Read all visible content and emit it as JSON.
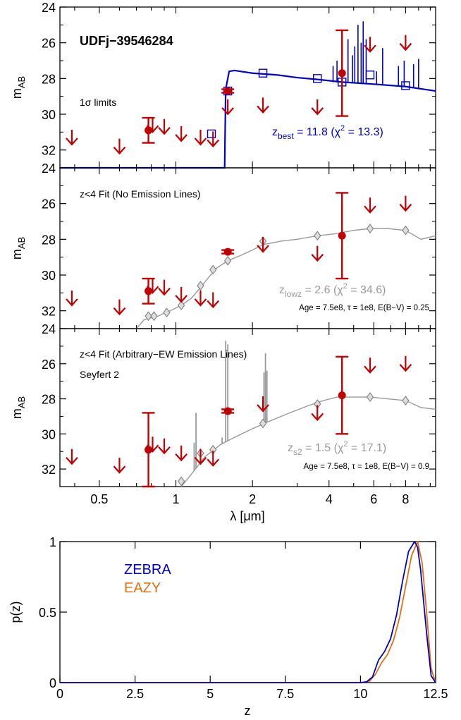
{
  "figure": {
    "y_label_main": "m",
    "y_label_sub": "AB",
    "x_label_sed": "λ [μm]",
    "x_label_pz": "z",
    "y_label_pz": "p(z)"
  },
  "colors": {
    "limit": "#c00000",
    "detection": "#c00000",
    "best_fit": "#0000c8",
    "lowz_model": "#999999",
    "zebra": "#0000c8",
    "eazy": "#e07010"
  },
  "chart_data": [
    {
      "type": "scatter",
      "panel": "top",
      "x_scale": "log",
      "xlim": [
        0.35,
        10.5
      ],
      "ylim": [
        33,
        24
      ],
      "y_ticks": [
        24,
        26,
        28,
        30,
        32
      ],
      "texts": {
        "object": "UDFj−39546284",
        "limits_note": "1σ limits",
        "fit_prefix": "z",
        "fit_sub": "best",
        "fit_rest": " = 11.8 (χ",
        "fit_sup": "2",
        "fit_end": " = 13.3)"
      },
      "upper_limits": [
        {
          "x": 0.39,
          "y": 31.3
        },
        {
          "x": 0.6,
          "y": 31.8
        },
        {
          "x": 0.81,
          "y": 30.6
        },
        {
          "x": 0.9,
          "y": 30.7
        },
        {
          "x": 1.05,
          "y": 31.1
        },
        {
          "x": 1.25,
          "y": 31.3
        },
        {
          "x": 1.4,
          "y": 31.4
        },
        {
          "x": 1.6,
          "y": 29.6
        },
        {
          "x": 2.2,
          "y": 29.5
        },
        {
          "x": 3.6,
          "y": 29.6
        },
        {
          "x": 5.8,
          "y": 26.1
        },
        {
          "x": 8.0,
          "y": 26.0
        }
      ],
      "detections": [
        {
          "x": 0.78,
          "y": 30.9,
          "err": 0.7
        },
        {
          "x": 1.6,
          "y": 28.7,
          "err": 0.1
        },
        {
          "x": 4.5,
          "y": 27.7,
          "err": 2.4
        }
      ],
      "model_points": [
        {
          "x": 1.38,
          "y": 31.1
        },
        {
          "x": 1.6,
          "y": 28.7
        },
        {
          "x": 2.2,
          "y": 27.7
        },
        {
          "x": 3.6,
          "y": 28.0
        },
        {
          "x": 4.5,
          "y": 28.2
        },
        {
          "x": 5.8,
          "y": 27.8
        },
        {
          "x": 8.0,
          "y": 28.4
        }
      ]
    },
    {
      "type": "scatter",
      "panel": "middle",
      "x_scale": "log",
      "xlim": [
        0.35,
        10.5
      ],
      "ylim": [
        33,
        24
      ],
      "y_ticks": [
        24,
        26,
        28,
        30,
        32
      ],
      "texts": {
        "title": "z<4 Fit (No Emission Lines)",
        "fit_prefix": "z",
        "fit_sub": "lowz",
        "fit_rest": " = 2.6 (χ",
        "fit_sup": "2",
        "fit_end": " = 34.6)",
        "params": "Age = 7.5e8, τ = 1e8, E(B−V) = 0.25"
      },
      "upper_limits": [
        {
          "x": 0.39,
          "y": 31.3
        },
        {
          "x": 0.6,
          "y": 31.8
        },
        {
          "x": 0.81,
          "y": 30.6
        },
        {
          "x": 0.9,
          "y": 30.7
        },
        {
          "x": 1.05,
          "y": 31.1
        },
        {
          "x": 1.25,
          "y": 31.3
        },
        {
          "x": 1.4,
          "y": 31.4
        },
        {
          "x": 2.2,
          "y": 28.3
        },
        {
          "x": 3.6,
          "y": 28.8
        },
        {
          "x": 5.8,
          "y": 26.1
        },
        {
          "x": 8.0,
          "y": 26.0
        }
      ],
      "detections": [
        {
          "x": 0.78,
          "y": 30.9,
          "err": 0.7
        },
        {
          "x": 1.6,
          "y": 28.7,
          "err": 0.1
        },
        {
          "x": 4.5,
          "y": 27.8,
          "err": 2.4
        }
      ],
      "model_points": [
        {
          "x": 0.78,
          "y": 32.3
        },
        {
          "x": 0.82,
          "y": 32.3
        },
        {
          "x": 0.92,
          "y": 32.1
        },
        {
          "x": 1.05,
          "y": 31.7
        },
        {
          "x": 1.25,
          "y": 30.6
        },
        {
          "x": 1.4,
          "y": 29.7
        },
        {
          "x": 1.6,
          "y": 29.2
        },
        {
          "x": 2.2,
          "y": 28.1
        },
        {
          "x": 3.6,
          "y": 27.8
        },
        {
          "x": 5.8,
          "y": 27.4
        },
        {
          "x": 8.0,
          "y": 27.5
        }
      ],
      "model_curve": [
        {
          "x": 0.7,
          "y": 33.0
        },
        {
          "x": 0.75,
          "y": 32.5
        },
        {
          "x": 0.85,
          "y": 32.3
        },
        {
          "x": 0.95,
          "y": 32.0
        },
        {
          "x": 1.05,
          "y": 31.7
        },
        {
          "x": 1.15,
          "y": 31.3
        },
        {
          "x": 1.25,
          "y": 30.7
        },
        {
          "x": 1.35,
          "y": 30.1
        },
        {
          "x": 1.45,
          "y": 29.6
        },
        {
          "x": 1.6,
          "y": 29.2
        },
        {
          "x": 1.8,
          "y": 28.9
        },
        {
          "x": 2.0,
          "y": 28.6
        },
        {
          "x": 2.2,
          "y": 28.3
        },
        {
          "x": 2.6,
          "y": 28.1
        },
        {
          "x": 3.0,
          "y": 28.0
        },
        {
          "x": 3.6,
          "y": 27.8
        },
        {
          "x": 4.2,
          "y": 27.7
        },
        {
          "x": 5.0,
          "y": 27.5
        },
        {
          "x": 5.8,
          "y": 27.4
        },
        {
          "x": 6.8,
          "y": 27.4
        },
        {
          "x": 8.0,
          "y": 27.5
        },
        {
          "x": 9.2,
          "y": 28.0
        },
        {
          "x": 10.5,
          "y": 27.8
        }
      ]
    },
    {
      "type": "scatter",
      "panel": "bottom",
      "x_scale": "log",
      "xlim": [
        0.35,
        10.5
      ],
      "ylim": [
        33,
        24
      ],
      "x_ticks": [
        0.5,
        1,
        2,
        4,
        6,
        8
      ],
      "x_tick_labels": [
        "0.5",
        "1",
        "2",
        "4",
        "6",
        "8"
      ],
      "y_ticks": [
        24,
        26,
        28,
        30,
        32
      ],
      "texts": {
        "title": "z<4 Fit (Arbitrary−EW Emission Lines)",
        "subtitle": "Seyfert 2",
        "fit_prefix": "z",
        "fit_sub": "s2",
        "fit_rest": " = 1.5 (χ",
        "fit_sup": "2",
        "fit_end": " = 17.1)",
        "params": "Age = 7.5e8, τ = 1e8, E(B−V) = 0.9"
      },
      "upper_limits": [
        {
          "x": 0.39,
          "y": 31.3
        },
        {
          "x": 0.6,
          "y": 31.8
        },
        {
          "x": 0.81,
          "y": 30.6
        },
        {
          "x": 0.9,
          "y": 30.7
        },
        {
          "x": 1.05,
          "y": 31.1
        },
        {
          "x": 1.25,
          "y": 31.3
        },
        {
          "x": 1.4,
          "y": 31.4
        },
        {
          "x": 2.2,
          "y": 28.3
        },
        {
          "x": 3.6,
          "y": 28.8
        },
        {
          "x": 5.8,
          "y": 26.1
        },
        {
          "x": 8.0,
          "y": 26.0
        }
      ],
      "detections": [
        {
          "x": 0.78,
          "y": 30.9,
          "err": 2.1
        },
        {
          "x": 1.6,
          "y": 28.7,
          "err": 0.1
        },
        {
          "x": 4.5,
          "y": 27.8,
          "err": 2.2
        }
      ],
      "model_points": [
        {
          "x": 1.05,
          "y": 32.7
        },
        {
          "x": 1.25,
          "y": 31.1
        },
        {
          "x": 1.4,
          "y": 30.9
        },
        {
          "x": 2.2,
          "y": 29.4
        },
        {
          "x": 3.6,
          "y": 28.3
        },
        {
          "x": 5.8,
          "y": 27.9
        },
        {
          "x": 8.0,
          "y": 28.1
        }
      ],
      "model_curve": [
        {
          "x": 1.05,
          "y": 33.0
        },
        {
          "x": 1.15,
          "y": 32.3
        },
        {
          "x": 1.3,
          "y": 31.3
        },
        {
          "x": 1.5,
          "y": 30.6
        },
        {
          "x": 1.7,
          "y": 30.2
        },
        {
          "x": 2.0,
          "y": 29.7
        },
        {
          "x": 2.4,
          "y": 29.2
        },
        {
          "x": 2.8,
          "y": 28.8
        },
        {
          "x": 3.3,
          "y": 28.4
        },
        {
          "x": 3.8,
          "y": 28.1
        },
        {
          "x": 4.3,
          "y": 27.9
        },
        {
          "x": 5.0,
          "y": 27.9
        },
        {
          "x": 5.8,
          "y": 27.9
        },
        {
          "x": 6.8,
          "y": 28.0
        },
        {
          "x": 8.0,
          "y": 28.1
        },
        {
          "x": 9.2,
          "y": 28.5
        },
        {
          "x": 10.5,
          "y": 28.6
        }
      ],
      "emission_lines": [
        {
          "x": 0.82,
          "peak": 33.0
        },
        {
          "x": 0.9,
          "peak": 33.0
        },
        {
          "x": 1.0,
          "peak": 33.0
        },
        {
          "x": 1.18,
          "peak": 30.5
        },
        {
          "x": 1.2,
          "peak": 28.8
        },
        {
          "x": 1.28,
          "peak": 31.5
        },
        {
          "x": 1.52,
          "peak": 30.2
        },
        {
          "x": 1.57,
          "peak": 24.7
        },
        {
          "x": 1.6,
          "peak": 24.9
        },
        {
          "x": 2.22,
          "peak": 26.5
        },
        {
          "x": 2.25,
          "peak": 25.4
        },
        {
          "x": 2.28,
          "peak": 26.4
        }
      ]
    },
    {
      "type": "line",
      "panel": "pz",
      "title": "",
      "xlabel": "z",
      "ylabel": "p(z)",
      "xlim": [
        0,
        12.5
      ],
      "ylim": [
        0,
        1
      ],
      "x_ticks": [
        0,
        2.5,
        5,
        7.5,
        10,
        12.5
      ],
      "x_tick_labels": [
        "0",
        "2.5",
        "5",
        "7.5",
        "10",
        "12.5"
      ],
      "y_ticks": [
        0,
        0.5,
        1
      ],
      "y_tick_labels": [
        "0",
        "0.5",
        "1"
      ],
      "legend_position": "upper-left",
      "series": [
        {
          "name": "ZEBRA",
          "x": [
            0,
            10.0,
            10.2,
            10.4,
            10.6,
            10.8,
            11.0,
            11.2,
            11.4,
            11.6,
            11.8,
            11.9,
            12.0,
            12.2,
            12.35,
            12.5
          ],
          "y": [
            0,
            0,
            0.005,
            0.04,
            0.16,
            0.22,
            0.31,
            0.48,
            0.72,
            0.93,
            1.0,
            0.96,
            0.8,
            0.35,
            0.05,
            0
          ]
        },
        {
          "name": "EAZY",
          "x": [
            0,
            10.0,
            10.3,
            10.5,
            10.7,
            10.9,
            11.1,
            11.3,
            11.5,
            11.7,
            11.9,
            12.05,
            12.2,
            12.35,
            12.5
          ],
          "y": [
            0,
            0,
            0.01,
            0.06,
            0.14,
            0.2,
            0.3,
            0.46,
            0.68,
            0.9,
            1.0,
            0.85,
            0.5,
            0.1,
            0
          ]
        }
      ]
    }
  ]
}
